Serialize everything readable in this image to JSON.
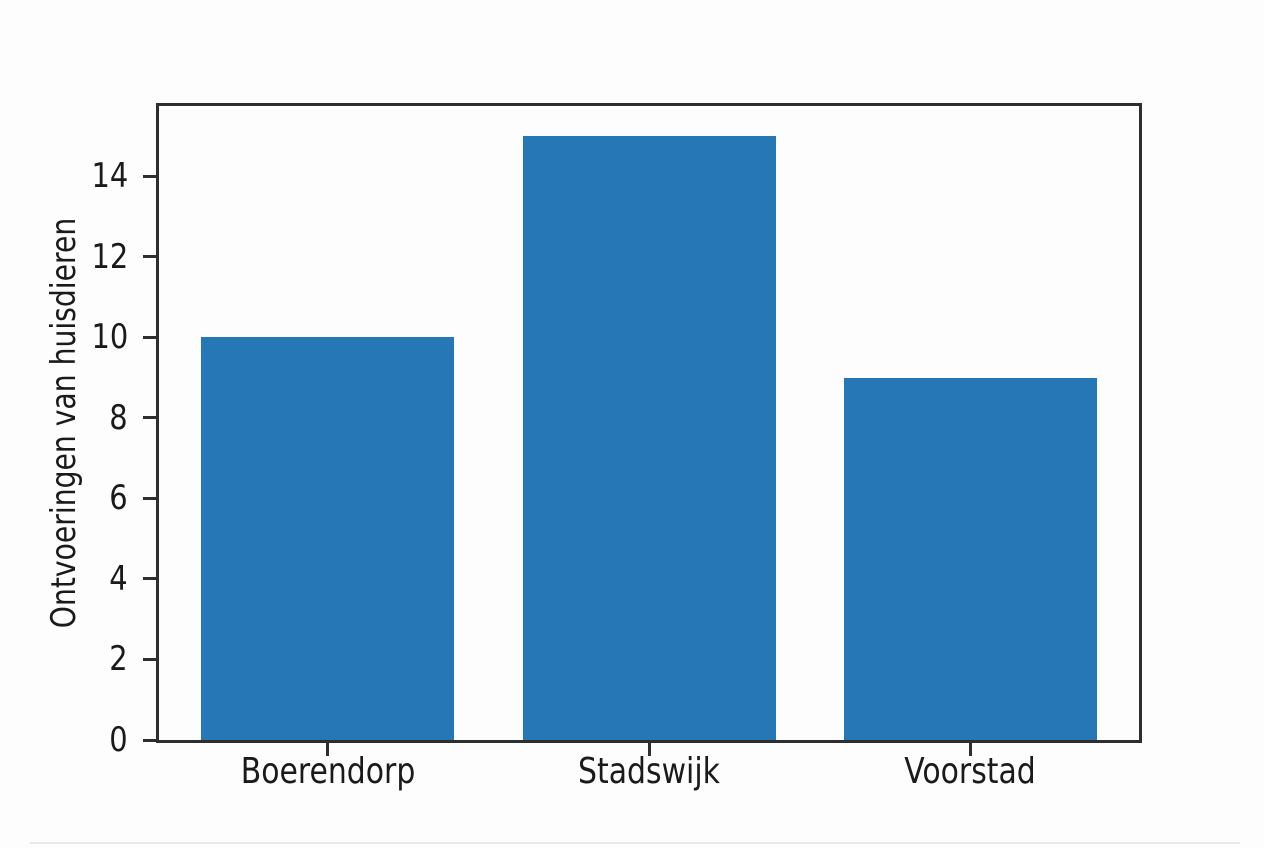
{
  "chart_data": {
    "type": "bar",
    "categories": [
      "Boerendorp",
      "Stadswijk",
      "Voorstad"
    ],
    "values": [
      10,
      15,
      9
    ],
    "title": "",
    "xlabel": "",
    "ylabel": "Ontvoeringen van huisdieren",
    "yticks": [
      0,
      2,
      4,
      6,
      8,
      10,
      12,
      14
    ],
    "ylim": [
      0,
      15.75
    ],
    "bar_color": "#2577b6",
    "axis_color": "#2e2e2e",
    "text_color": "#1a1a1a",
    "background_color": "#fdfdfd",
    "grid": false,
    "legend": null
  }
}
